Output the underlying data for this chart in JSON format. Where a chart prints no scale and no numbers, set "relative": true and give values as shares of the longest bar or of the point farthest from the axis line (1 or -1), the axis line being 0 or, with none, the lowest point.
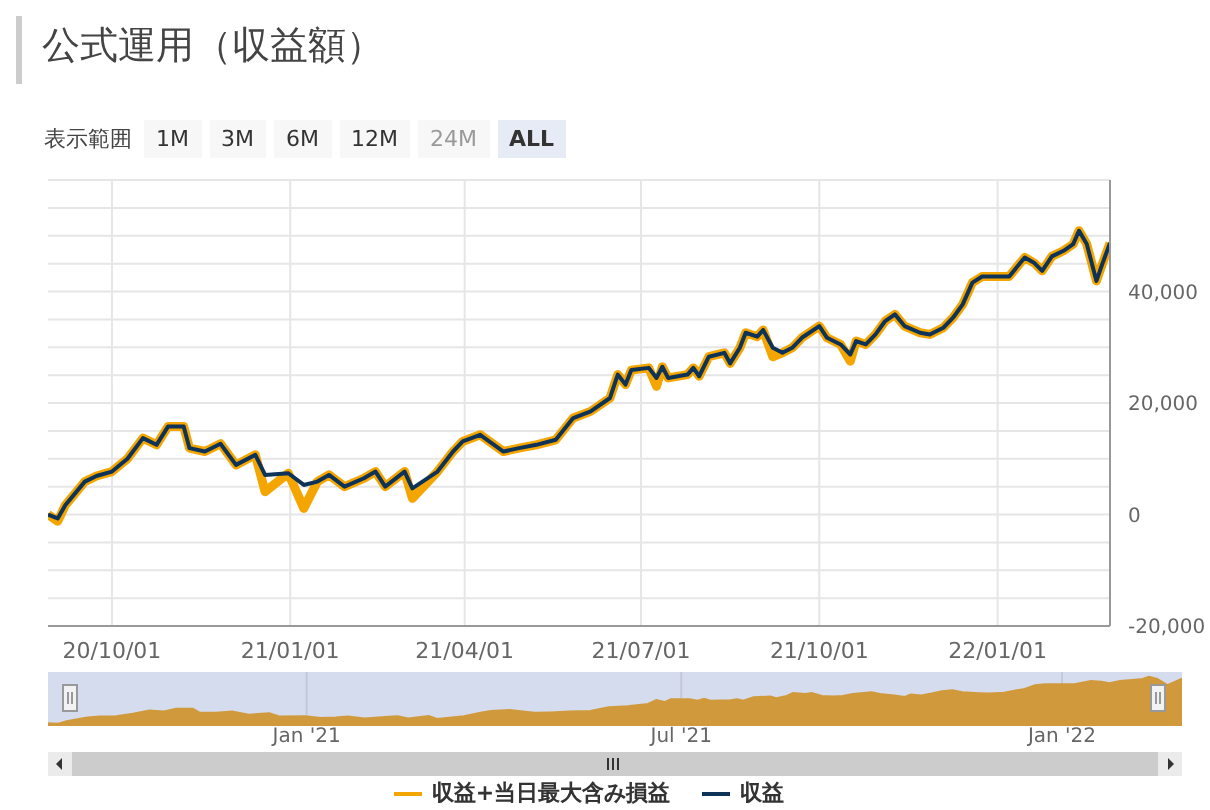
{
  "chart_data": [
    {
      "type": "line",
      "title": "公式運用（収益額）",
      "annotations": [
        "表示範囲",
        "1M",
        "3M",
        "6M",
        "12M",
        "24M",
        "ALL"
      ],
      "x": [
        "2020-08-29",
        "2020-09-03",
        "2020-09-07",
        "2020-09-17",
        "2020-09-23",
        "2020-10-01",
        "2020-10-09",
        "2020-10-17",
        "2020-10-24",
        "2020-10-30",
        "2020-11-07",
        "2020-11-10",
        "2020-11-18",
        "2020-11-26",
        "2020-12-04",
        "2020-12-14",
        "2020-12-19",
        "2020-12-31",
        "2021-01-08",
        "2021-01-15",
        "2021-01-21",
        "2021-01-29",
        "2021-02-08",
        "2021-02-14",
        "2021-02-19",
        "2021-03-01",
        "2021-03-05",
        "2021-03-18",
        "2021-03-26",
        "2021-03-31",
        "2021-04-09",
        "2021-04-21",
        "2021-04-29",
        "2021-05-08",
        "2021-05-18",
        "2021-05-27",
        "2021-06-05",
        "2021-06-15",
        "2021-06-19",
        "2021-06-23",
        "2021-06-26",
        "2021-07-05",
        "2021-07-09",
        "2021-07-12",
        "2021-07-15",
        "2021-07-25",
        "2021-07-28",
        "2021-07-31",
        "2021-08-05",
        "2021-08-13",
        "2021-08-16",
        "2021-08-21",
        "2021-08-24",
        "2021-08-30",
        "2021-09-02",
        "2021-09-07",
        "2021-09-12",
        "2021-09-17",
        "2021-09-22",
        "2021-10-01",
        "2021-10-05",
        "2021-10-12",
        "2021-10-17",
        "2021-10-20",
        "2021-10-25",
        "2021-10-30",
        "2021-11-04",
        "2021-11-09",
        "2021-11-14",
        "2021-11-22",
        "2021-11-27",
        "2021-12-04",
        "2021-12-09",
        "2021-12-14",
        "2021-12-19",
        "2021-12-24",
        "2022-01-07",
        "2022-01-15",
        "2022-01-20",
        "2022-01-24",
        "2022-01-29",
        "2022-02-04",
        "2022-02-09",
        "2022-02-12",
        "2022-02-16",
        "2022-02-21",
        "2022-02-24",
        "2022-02-28"
      ],
      "series": [
        {
          "name": "収益+当日最大含み損益",
          "color": "#f5a500",
          "values": [
            0,
            -1200,
            1700,
            5900,
            6900,
            7700,
            10000,
            13700,
            12500,
            15800,
            15800,
            11900,
            11300,
            12700,
            8900,
            10700,
            4100,
            7400,
            1100,
            5900,
            7100,
            5000,
            6500,
            7700,
            5000,
            7700,
            2900,
            7700,
            11300,
            13100,
            14300,
            11300,
            11900,
            12500,
            13400,
            17300,
            18500,
            20900,
            25100,
            23300,
            25900,
            26300,
            23000,
            26500,
            24500,
            25100,
            26300,
            24800,
            28300,
            29000,
            27100,
            29900,
            32600,
            31900,
            33100,
            28300,
            29000,
            29900,
            31700,
            33800,
            31700,
            30500,
            27500,
            31100,
            30500,
            32300,
            34700,
            35900,
            33800,
            32600,
            32300,
            33500,
            35300,
            37700,
            41600,
            42700,
            42700,
            46100,
            45100,
            43700,
            46300,
            47300,
            48500,
            50900,
            48500,
            41900,
            44900,
            48700
          ]
        },
        {
          "name": "収益",
          "color": "#0d3358",
          "values": [
            0,
            -700,
            1700,
            5900,
            6900,
            7700,
            10000,
            13700,
            12500,
            15800,
            15800,
            11900,
            11300,
            12700,
            8900,
            10700,
            7100,
            7400,
            5300,
            5900,
            7100,
            5000,
            6500,
            7700,
            5000,
            7700,
            4700,
            7700,
            11300,
            13100,
            14300,
            11300,
            11900,
            12500,
            13400,
            17300,
            18500,
            20900,
            25100,
            23300,
            25900,
            26300,
            24500,
            26500,
            24500,
            25100,
            26300,
            24800,
            28300,
            29000,
            27100,
            29900,
            32600,
            31900,
            33100,
            29900,
            29000,
            29900,
            31700,
            33800,
            31700,
            30500,
            28700,
            31100,
            30500,
            32300,
            34700,
            35900,
            33800,
            32600,
            32300,
            33500,
            35300,
            37700,
            41600,
            42700,
            42700,
            46100,
            45100,
            43700,
            46300,
            47300,
            48500,
            50900,
            48500,
            41900,
            44900,
            48700
          ]
        }
      ],
      "xlim": [
        "2020-08-29",
        "2022-02-28"
      ],
      "xticks": [
        {
          "value": "2020-10-01",
          "label": "20/10/01"
        },
        {
          "value": "2021-01-01",
          "label": "21/01/01"
        },
        {
          "value": "2021-04-01",
          "label": "21/04/01"
        },
        {
          "value": "2021-07-01",
          "label": "21/07/01"
        },
        {
          "value": "2021-10-01",
          "label": "21/10/01"
        },
        {
          "value": "2022-01-01",
          "label": "22/01/01"
        }
      ],
      "ylim": [
        -20000,
        60000
      ],
      "yticks": [
        {
          "value": -20000,
          "label": "-20,000"
        },
        {
          "value": -15000,
          "label": null
        },
        {
          "value": -10000,
          "label": null
        },
        {
          "value": -5000,
          "label": null
        },
        {
          "value": 0,
          "label": "0"
        },
        {
          "value": 5000,
          "label": null
        },
        {
          "value": 10000,
          "label": null
        },
        {
          "value": 15000,
          "label": null
        },
        {
          "value": 20000,
          "label": "20,000"
        },
        {
          "value": 25000,
          "label": null
        },
        {
          "value": 30000,
          "label": null
        },
        {
          "value": 35000,
          "label": null
        },
        {
          "value": 40000,
          "label": "40,000"
        },
        {
          "value": 45000,
          "label": null
        },
        {
          "value": 50000,
          "label": null
        },
        {
          "value": 55000,
          "label": null
        },
        {
          "value": 60000,
          "label": null
        }
      ],
      "grid": true,
      "marker": "none",
      "line_style": "solid",
      "legend": "bottom"
    },
    {
      "type": "area",
      "relative": true,
      "tick_labels": "x",
      "grid": "x",
      "x": [
        "2020-08-29",
        "2020-09-03",
        "2020-09-07",
        "2020-09-17",
        "2020-09-23",
        "2020-10-01",
        "2020-10-09",
        "2020-10-17",
        "2020-10-24",
        "2020-10-30",
        "2020-11-07",
        "2020-11-10",
        "2020-11-18",
        "2020-11-26",
        "2020-12-04",
        "2020-12-14",
        "2020-12-19",
        "2020-12-31",
        "2021-01-08",
        "2021-01-15",
        "2021-01-21",
        "2021-01-29",
        "2021-02-08",
        "2021-02-14",
        "2021-02-19",
        "2021-03-01",
        "2021-03-05",
        "2021-03-18",
        "2021-03-26",
        "2021-03-31",
        "2021-04-09",
        "2021-04-21",
        "2021-04-29",
        "2021-05-08",
        "2021-05-18",
        "2021-05-27",
        "2021-06-05",
        "2021-06-15",
        "2021-06-19",
        "2021-06-23",
        "2021-06-26",
        "2021-07-05",
        "2021-07-09",
        "2021-07-12",
        "2021-07-15",
        "2021-07-25",
        "2021-07-28",
        "2021-07-31",
        "2021-08-05",
        "2021-08-13",
        "2021-08-16",
        "2021-08-21",
        "2021-08-24",
        "2021-08-30",
        "2021-09-02",
        "2021-09-07",
        "2021-09-12",
        "2021-09-17",
        "2021-09-22",
        "2021-10-01",
        "2021-10-05",
        "2021-10-12",
        "2021-10-17",
        "2021-10-20",
        "2021-10-25",
        "2021-10-30",
        "2021-11-04",
        "2021-11-09",
        "2021-11-14",
        "2021-11-22",
        "2021-11-27",
        "2021-12-04",
        "2021-12-09",
        "2021-12-14",
        "2021-12-19",
        "2021-12-24",
        "2022-01-07",
        "2022-01-15",
        "2022-01-20",
        "2022-01-24",
        "2022-01-29",
        "2022-02-04",
        "2022-02-09",
        "2022-02-12",
        "2022-02-16",
        "2022-02-21",
        "2022-02-24",
        "2022-02-28"
      ],
      "series": [
        {
          "color": "#d09a3c",
          "values": [
            0.01,
            0,
            0.05,
            0.13,
            0.15,
            0.16,
            0.21,
            0.28,
            0.26,
            0.32,
            0.32,
            0.24,
            0.23,
            0.26,
            0.19,
            0.22,
            0.15,
            0.16,
            0.12,
            0.13,
            0.15,
            0.11,
            0.14,
            0.16,
            0.11,
            0.16,
            0.1,
            0.16,
            0.23,
            0.27,
            0.29,
            0.23,
            0.24,
            0.26,
            0.27,
            0.35,
            0.37,
            0.42,
            0.5,
            0.46,
            0.52,
            0.52,
            0.49,
            0.53,
            0.49,
            0.5,
            0.52,
            0.49,
            0.56,
            0.58,
            0.54,
            0.59,
            0.65,
            0.63,
            0.65,
            0.59,
            0.58,
            0.59,
            0.63,
            0.67,
            0.63,
            0.6,
            0.57,
            0.62,
            0.6,
            0.64,
            0.69,
            0.71,
            0.67,
            0.65,
            0.64,
            0.66,
            0.7,
            0.74,
            0.82,
            0.84,
            0.84,
            0.91,
            0.89,
            0.86,
            0.91,
            0.93,
            0.95,
            1,
            0.95,
            0.82,
            0.88,
            0.96
          ]
        }
      ],
      "xlim": [
        "2020-08-29",
        "2022-02-28"
      ],
      "xticks": [
        {
          "value": "2021-01-01",
          "label": "Jan '21"
        },
        {
          "value": "2021-07-01",
          "label": "Jul '21"
        },
        {
          "value": "2022-01-01",
          "label": "Jan '22"
        }
      ]
    }
  ]
}
